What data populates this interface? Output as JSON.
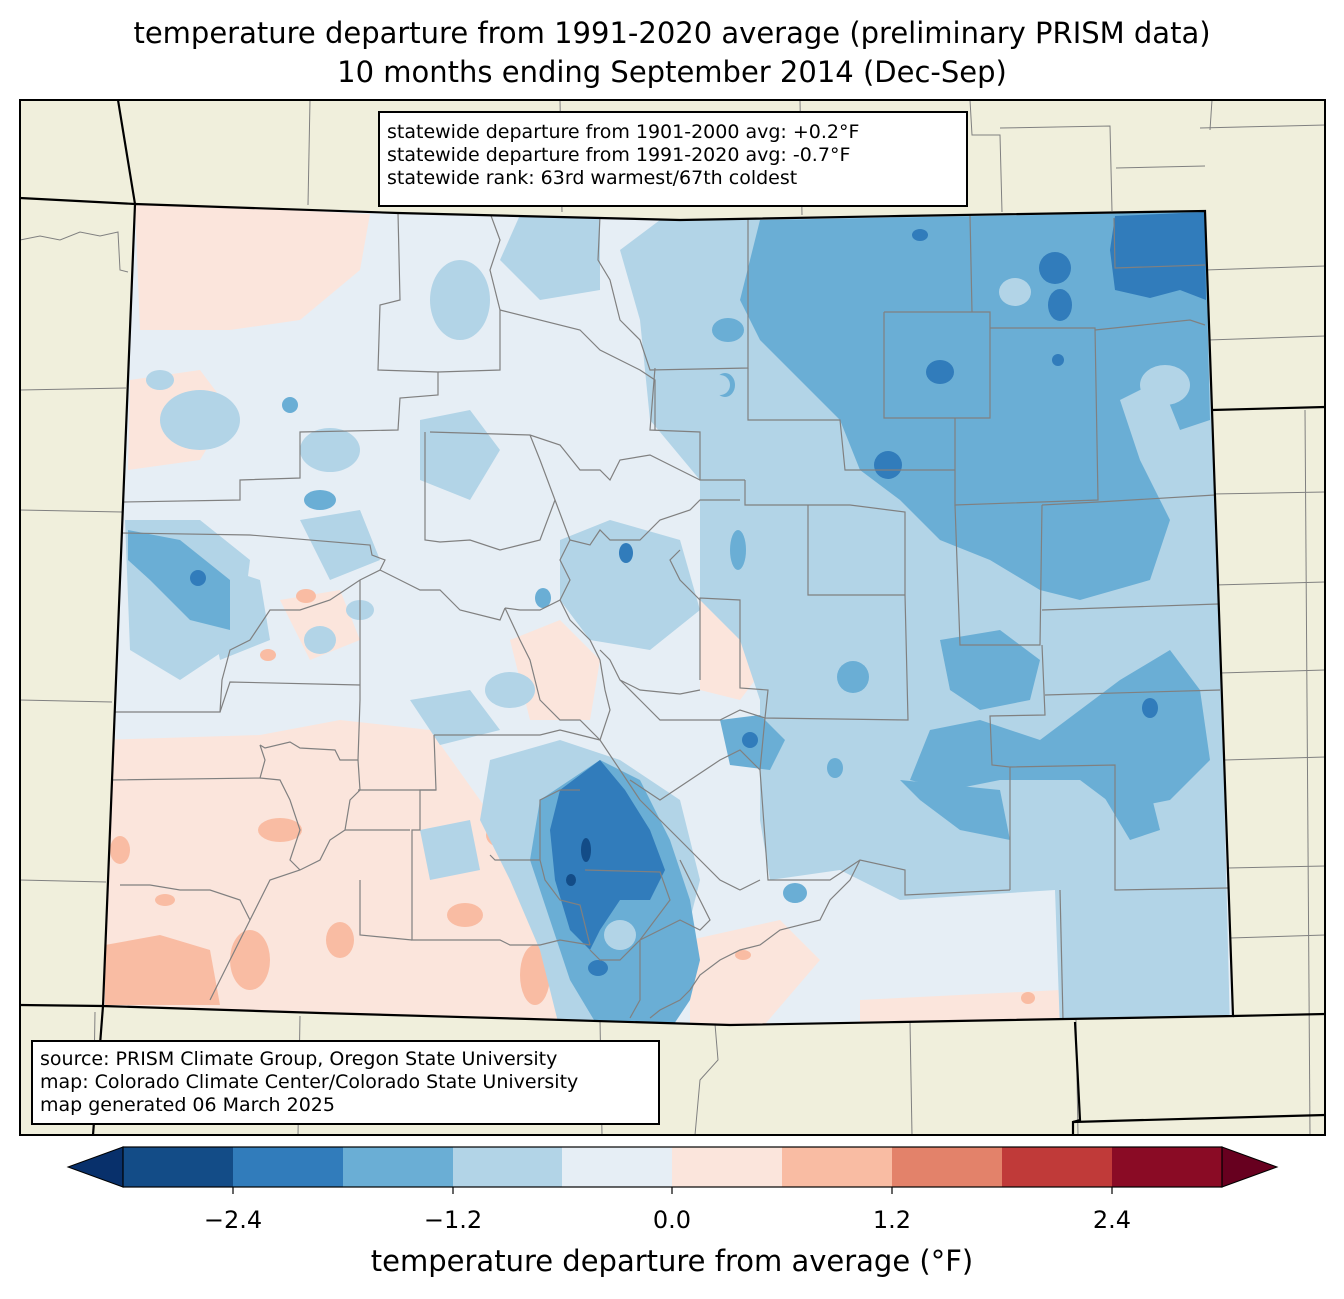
{
  "title_line1": "temperature departure from 1991-2020 average (preliminary PRISM data)",
  "title_line2": "10 months ending September 2014 (Dec-Sep)",
  "stats": {
    "line1": "statewide departure from 1901-2000 avg: +0.2°F",
    "line2": "statewide departure from 1991-2020 avg: -0.7°F",
    "line3": "statewide rank: 63rd warmest/67th coldest"
  },
  "source": {
    "line1": "source: PRISM Climate Group, Oregon State University",
    "line2": "map: Colorado Climate Center/Colorado State University",
    "line3": "map generated 06 March 2025"
  },
  "colorbar": {
    "label": "temperature departure from average (°F)",
    "ticks": [
      "−2.4",
      "−1.2",
      "0.0",
      "1.2",
      "2.4"
    ],
    "bins": [
      {
        "range": "< -3.0",
        "color": "#08306b"
      },
      {
        "range": "-3.0 to -2.4",
        "color": "#134c87"
      },
      {
        "range": "-2.4 to -1.8",
        "color": "#317cbb"
      },
      {
        "range": "-1.8 to -1.2",
        "color": "#6aaed5"
      },
      {
        "range": "-1.2 to -0.6",
        "color": "#b2d4e7"
      },
      {
        "range": "-0.6 to 0.0",
        "color": "#e6eef5"
      },
      {
        "range": "0.0 to 0.6",
        "color": "#fbe5dc"
      },
      {
        "range": "0.6 to 1.2",
        "color": "#f9bca3"
      },
      {
        "range": "1.2 to 1.8",
        "color": "#e3826a"
      },
      {
        "range": "1.8 to 2.4",
        "color": "#c03a39"
      },
      {
        "range": "2.4 to 3.0",
        "color": "#8a0b25"
      },
      {
        "range": "> 3.0",
        "color": "#67001f"
      }
    ]
  },
  "colors": {
    "land": "#f0efdc",
    "county_lines": "#808080",
    "state_lines": "#000000"
  }
}
